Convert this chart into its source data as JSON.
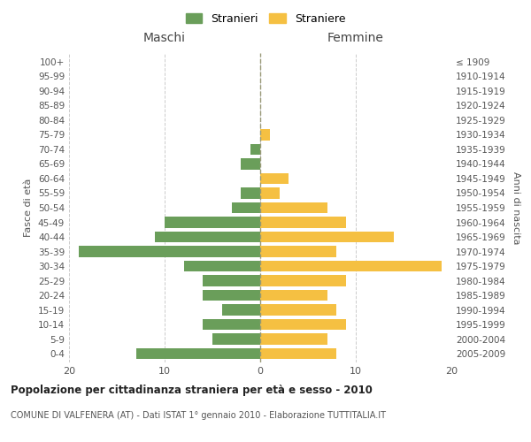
{
  "age_groups": [
    "100+",
    "95-99",
    "90-94",
    "85-89",
    "80-84",
    "75-79",
    "70-74",
    "65-69",
    "60-64",
    "55-59",
    "50-54",
    "45-49",
    "40-44",
    "35-39",
    "30-34",
    "25-29",
    "20-24",
    "15-19",
    "10-14",
    "5-9",
    "0-4"
  ],
  "birth_years": [
    "≤ 1909",
    "1910-1914",
    "1915-1919",
    "1920-1924",
    "1925-1929",
    "1930-1934",
    "1935-1939",
    "1940-1944",
    "1945-1949",
    "1950-1954",
    "1955-1959",
    "1960-1964",
    "1965-1969",
    "1970-1974",
    "1975-1979",
    "1980-1984",
    "1985-1989",
    "1990-1994",
    "1995-1999",
    "2000-2004",
    "2005-2009"
  ],
  "maschi": [
    0,
    0,
    0,
    0,
    0,
    0,
    1,
    2,
    0,
    2,
    3,
    10,
    11,
    19,
    8,
    6,
    6,
    4,
    6,
    5,
    13
  ],
  "femmine": [
    0,
    0,
    0,
    0,
    0,
    1,
    0,
    0,
    3,
    2,
    7,
    9,
    14,
    8,
    19,
    9,
    7,
    8,
    9,
    7,
    8
  ],
  "male_color": "#6a9e5a",
  "female_color": "#f5c042",
  "background_color": "#ffffff",
  "grid_color": "#cccccc",
  "title": "Popolazione per cittadinanza straniera per età e sesso - 2010",
  "subtitle": "COMUNE DI VALFENERA (AT) - Dati ISTAT 1° gennaio 2010 - Elaborazione TUTTITALIA.IT",
  "xlabel_left": "Maschi",
  "xlabel_right": "Femmine",
  "ylabel_left": "Fasce di età",
  "ylabel_right": "Anni di nascita",
  "xlim": 20,
  "legend_stranieri": "Stranieri",
  "legend_straniere": "Straniere"
}
